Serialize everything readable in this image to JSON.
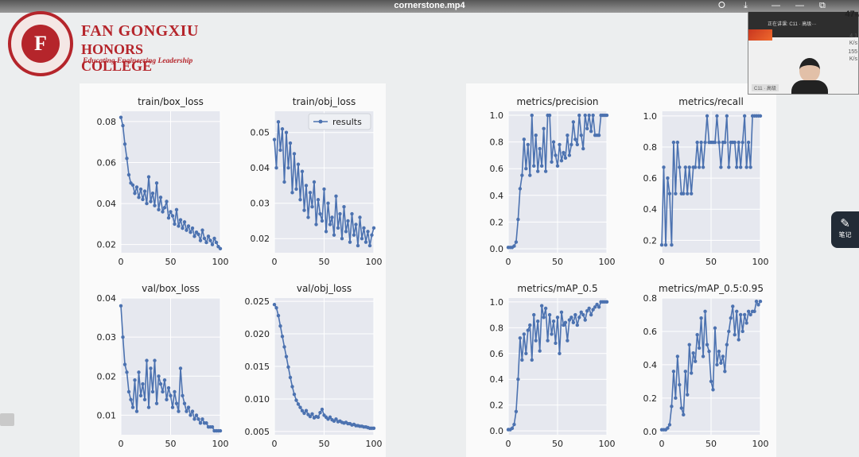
{
  "window": {
    "title": "cornerstone.mp4",
    "battery_value": "47",
    "battery_unit": "%"
  },
  "logo": {
    "seal_text": "F",
    "line1": "FAN GONGXIU",
    "line2": "HONORS COLLEGE",
    "tagline": "Educating Engineering Leadership"
  },
  "webcam": {
    "top_label": "正在讲课: C11 · 高级···",
    "name_tag": "C11 · 高级",
    "net_up": "4.1",
    "net_up_unit": "K/s",
    "net_down": "155",
    "net_down_unit": "K/s"
  },
  "notes_button": {
    "label": "笔记"
  },
  "icons": {
    "share": "share-icon",
    "download": "download-icon",
    "minimize": "minimize-icon",
    "restore": "restore-icon",
    "close": "close-icon",
    "notes": "notes-icon",
    "sidebar": "sidebar-toggle-icon"
  },
  "chart_data": [
    {
      "type": "line",
      "title": "train/box_loss",
      "xlim": [
        0,
        100
      ],
      "ylim": [
        0.016,
        0.085
      ],
      "xticks": [
        0,
        50,
        100
      ],
      "yticks": [
        0.02,
        0.04,
        0.06,
        0.08
      ],
      "ytick_labels": [
        "0.02",
        "0.04",
        "0.06",
        "0.08"
      ],
      "color": "#4c72b0",
      "series": [
        {
          "x": [
            0,
            2,
            4,
            6,
            8,
            10,
            12,
            14,
            16,
            18,
            20,
            22,
            24,
            26,
            28,
            30,
            32,
            34,
            36,
            38,
            40,
            42,
            44,
            46,
            48,
            50,
            52,
            54,
            56,
            58,
            60,
            62,
            64,
            66,
            68,
            70,
            72,
            74,
            76,
            78,
            80,
            82,
            84,
            86,
            88,
            90,
            92,
            94,
            96,
            98,
            100
          ],
          "y": [
            0.082,
            0.078,
            0.069,
            0.062,
            0.054,
            0.05,
            0.049,
            0.045,
            0.048,
            0.043,
            0.047,
            0.042,
            0.046,
            0.04,
            0.053,
            0.041,
            0.045,
            0.039,
            0.05,
            0.037,
            0.043,
            0.036,
            0.038,
            0.041,
            0.033,
            0.036,
            0.034,
            0.03,
            0.037,
            0.029,
            0.032,
            0.028,
            0.031,
            0.027,
            0.029,
            0.026,
            0.028,
            0.024,
            0.026,
            0.025,
            0.022,
            0.027,
            0.023,
            0.021,
            0.024,
            0.022,
            0.02,
            0.023,
            0.021,
            0.019,
            0.018
          ]
        }
      ]
    },
    {
      "type": "line",
      "title": "train/obj_loss",
      "legend": "results",
      "legend_position": "top-right",
      "xlim": [
        0,
        100
      ],
      "ylim": [
        0.016,
        0.056
      ],
      "xticks": [
        0,
        50,
        100
      ],
      "yticks": [
        0.02,
        0.03,
        0.04,
        0.05
      ],
      "ytick_labels": [
        "0.02",
        "0.03",
        "0.04",
        "0.05"
      ],
      "color": "#4c72b0",
      "series": [
        {
          "x": [
            0,
            2,
            4,
            6,
            8,
            10,
            12,
            14,
            16,
            18,
            20,
            22,
            24,
            26,
            28,
            30,
            32,
            34,
            36,
            38,
            40,
            42,
            44,
            46,
            48,
            50,
            52,
            54,
            56,
            58,
            60,
            62,
            64,
            66,
            68,
            70,
            72,
            74,
            76,
            78,
            80,
            82,
            84,
            86,
            88,
            90,
            92,
            94,
            96,
            98,
            100
          ],
          "y": [
            0.048,
            0.04,
            0.053,
            0.045,
            0.051,
            0.036,
            0.05,
            0.04,
            0.047,
            0.033,
            0.044,
            0.034,
            0.041,
            0.031,
            0.039,
            0.028,
            0.035,
            0.026,
            0.033,
            0.029,
            0.036,
            0.024,
            0.031,
            0.027,
            0.025,
            0.034,
            0.022,
            0.03,
            0.024,
            0.026,
            0.021,
            0.032,
            0.023,
            0.027,
            0.02,
            0.029,
            0.022,
            0.025,
            0.019,
            0.027,
            0.021,
            0.024,
            0.018,
            0.026,
            0.02,
            0.023,
            0.019,
            0.022,
            0.018,
            0.021,
            0.023
          ]
        }
      ]
    },
    {
      "type": "line",
      "title": "val/box_loss",
      "xlim": [
        0,
        100
      ],
      "ylim": [
        0.005,
        0.04
      ],
      "xticks": [
        0,
        50,
        100
      ],
      "yticks": [
        0.01,
        0.02,
        0.03,
        0.04
      ],
      "ytick_labels": [
        "0.01",
        "0.02",
        "0.03",
        "0.04"
      ],
      "color": "#4c72b0",
      "series": [
        {
          "x": [
            0,
            2,
            4,
            6,
            8,
            10,
            12,
            14,
            16,
            18,
            20,
            22,
            24,
            26,
            28,
            30,
            32,
            34,
            36,
            38,
            40,
            42,
            44,
            46,
            48,
            50,
            52,
            54,
            56,
            58,
            60,
            62,
            64,
            66,
            68,
            70,
            72,
            74,
            76,
            78,
            80,
            82,
            84,
            86,
            88,
            90,
            92,
            94,
            96,
            98,
            100
          ],
          "y": [
            0.038,
            0.03,
            0.023,
            0.021,
            0.016,
            0.014,
            0.012,
            0.019,
            0.011,
            0.021,
            0.015,
            0.018,
            0.014,
            0.024,
            0.012,
            0.022,
            0.016,
            0.024,
            0.013,
            0.02,
            0.018,
            0.016,
            0.019,
            0.014,
            0.017,
            0.015,
            0.012,
            0.016,
            0.013,
            0.011,
            0.022,
            0.015,
            0.013,
            0.011,
            0.012,
            0.01,
            0.011,
            0.009,
            0.01,
            0.009,
            0.008,
            0.009,
            0.008,
            0.008,
            0.007,
            0.007,
            0.007,
            0.006,
            0.006,
            0.006,
            0.006
          ]
        }
      ]
    },
    {
      "type": "line",
      "title": "val/obj_loss",
      "xlim": [
        0,
        100
      ],
      "ylim": [
        0.0045,
        0.0255
      ],
      "xticks": [
        0,
        50,
        100
      ],
      "yticks": [
        0.005,
        0.01,
        0.015,
        0.02,
        0.025
      ],
      "ytick_labels": [
        "0.005",
        "0.010",
        "0.015",
        "0.020",
        "0.025"
      ],
      "color": "#4c72b0",
      "series": [
        {
          "x": [
            0,
            2,
            4,
            6,
            8,
            10,
            12,
            14,
            16,
            18,
            20,
            22,
            24,
            26,
            28,
            30,
            32,
            34,
            36,
            38,
            40,
            42,
            44,
            46,
            48,
            50,
            52,
            54,
            56,
            58,
            60,
            62,
            64,
            66,
            68,
            70,
            72,
            74,
            76,
            78,
            80,
            82,
            84,
            86,
            88,
            90,
            92,
            94,
            96,
            98,
            100
          ],
          "y": [
            0.0245,
            0.024,
            0.0228,
            0.0212,
            0.0196,
            0.018,
            0.0165,
            0.0149,
            0.0133,
            0.0119,
            0.0107,
            0.0098,
            0.0092,
            0.0087,
            0.0082,
            0.0078,
            0.0082,
            0.0076,
            0.0073,
            0.0077,
            0.0071,
            0.0073,
            0.0072,
            0.0079,
            0.0084,
            0.0075,
            0.0072,
            0.0069,
            0.0072,
            0.0068,
            0.0066,
            0.0069,
            0.0065,
            0.0066,
            0.0064,
            0.0063,
            0.0064,
            0.0062,
            0.0062,
            0.006,
            0.0061,
            0.0059,
            0.0059,
            0.0058,
            0.0058,
            0.0057,
            0.0057,
            0.0056,
            0.0055,
            0.0055,
            0.0055
          ]
        }
      ]
    },
    {
      "type": "line",
      "title": "metrics/precision",
      "xlim": [
        0,
        100
      ],
      "ylim": [
        -0.03,
        1.03
      ],
      "xticks": [
        0,
        50,
        100
      ],
      "yticks": [
        0,
        0.2,
        0.4,
        0.6,
        0.8,
        1.0
      ],
      "ytick_labels": [
        "0.0",
        "0.2",
        "0.4",
        "0.6",
        "0.8",
        "1.0"
      ],
      "color": "#4c72b0",
      "series": [
        {
          "x": [
            0,
            2,
            4,
            6,
            8,
            10,
            12,
            14,
            16,
            18,
            20,
            22,
            24,
            26,
            28,
            30,
            32,
            34,
            36,
            38,
            40,
            42,
            44,
            46,
            48,
            50,
            52,
            54,
            56,
            58,
            60,
            62,
            64,
            66,
            68,
            70,
            72,
            74,
            76,
            78,
            80,
            82,
            84,
            86,
            88,
            90,
            92,
            94,
            96,
            98,
            100
          ],
          "y": [
            0.01,
            0.01,
            0.01,
            0.02,
            0.05,
            0.22,
            0.45,
            0.55,
            0.82,
            0.6,
            0.78,
            0.55,
            1.0,
            0.62,
            0.85,
            0.58,
            0.75,
            0.62,
            0.9,
            0.58,
            1.0,
            1.0,
            0.65,
            0.8,
            0.7,
            0.62,
            0.78,
            0.66,
            0.72,
            0.68,
            0.85,
            0.7,
            0.78,
            0.95,
            0.82,
            0.78,
            1.0,
            0.85,
            0.75,
            1.0,
            0.9,
            1.0,
            0.88,
            1.0,
            0.85,
            0.85,
            0.85,
            1.0,
            1.0,
            1.0,
            1.0
          ]
        }
      ]
    },
    {
      "type": "line",
      "title": "metrics/recall",
      "xlim": [
        0,
        100
      ],
      "ylim": [
        0.12,
        1.03
      ],
      "xticks": [
        0,
        50,
        100
      ],
      "yticks": [
        0.2,
        0.4,
        0.6,
        0.8,
        1.0
      ],
      "ytick_labels": [
        "0.2",
        "0.4",
        "0.6",
        "0.8",
        "1.0"
      ],
      "color": "#4c72b0",
      "series": [
        {
          "x": [
            0,
            2,
            4,
            6,
            8,
            10,
            12,
            14,
            16,
            18,
            20,
            22,
            24,
            26,
            28,
            30,
            32,
            34,
            36,
            38,
            40,
            42,
            44,
            46,
            48,
            50,
            52,
            54,
            56,
            58,
            60,
            62,
            64,
            66,
            68,
            70,
            72,
            74,
            76,
            78,
            80,
            82,
            84,
            86,
            88,
            90,
            92,
            94,
            96,
            98,
            100
          ],
          "y": [
            0.17,
            0.67,
            0.17,
            0.6,
            0.5,
            0.17,
            0.83,
            0.5,
            0.83,
            0.67,
            0.5,
            0.5,
            0.67,
            0.5,
            0.67,
            0.5,
            0.67,
            0.67,
            0.83,
            0.67,
            0.83,
            0.67,
            0.83,
            1.0,
            0.83,
            0.83,
            0.83,
            0.83,
            1.0,
            0.83,
            0.67,
            0.83,
            0.83,
            1.0,
            0.67,
            0.83,
            0.83,
            0.83,
            0.67,
            0.83,
            0.67,
            0.83,
            1.0,
            0.67,
            0.83,
            0.67,
            1.0,
            1.0,
            1.0,
            1.0,
            1.0
          ]
        }
      ]
    },
    {
      "type": "line",
      "title": "metrics/mAP_0.5",
      "xlim": [
        0,
        100
      ],
      "ylim": [
        -0.03,
        1.03
      ],
      "xticks": [
        0,
        50,
        100
      ],
      "yticks": [
        0,
        0.2,
        0.4,
        0.6,
        0.8,
        1.0
      ],
      "ytick_labels": [
        "0.0",
        "0.2",
        "0.4",
        "0.6",
        "0.8",
        "1.0"
      ],
      "color": "#4c72b0",
      "series": [
        {
          "x": [
            0,
            2,
            4,
            6,
            8,
            10,
            12,
            14,
            16,
            18,
            20,
            22,
            24,
            26,
            28,
            30,
            32,
            34,
            36,
            38,
            40,
            42,
            44,
            46,
            48,
            50,
            52,
            54,
            56,
            58,
            60,
            62,
            64,
            66,
            68,
            70,
            72,
            74,
            76,
            78,
            80,
            82,
            84,
            86,
            88,
            90,
            92,
            94,
            96,
            98,
            100
          ],
          "y": [
            0.01,
            0.01,
            0.02,
            0.05,
            0.15,
            0.4,
            0.72,
            0.55,
            0.75,
            0.6,
            0.78,
            0.82,
            0.55,
            0.9,
            0.7,
            0.85,
            0.62,
            0.97,
            0.88,
            0.95,
            0.7,
            0.9,
            0.75,
            0.85,
            0.68,
            0.88,
            0.6,
            0.92,
            0.82,
            0.84,
            0.7,
            0.86,
            0.88,
            0.84,
            0.9,
            0.82,
            0.88,
            0.92,
            0.9,
            0.86,
            0.93,
            0.95,
            0.9,
            0.94,
            0.96,
            0.98,
            0.96,
            1.0,
            1.0,
            1.0,
            1.0
          ]
        }
      ]
    },
    {
      "type": "line",
      "title": "metrics/mAP_0.5:0.95",
      "xlim": [
        0,
        100
      ],
      "ylim": [
        -0.02,
        0.8
      ],
      "xticks": [
        0,
        50,
        100
      ],
      "yticks": [
        0,
        0.2,
        0.4,
        0.6,
        0.8
      ],
      "ytick_labels": [
        "0.0",
        "0.2",
        "0.4",
        "0.6",
        "0.8"
      ],
      "color": "#4c72b0",
      "series": [
        {
          "x": [
            0,
            2,
            4,
            6,
            8,
            10,
            12,
            14,
            16,
            18,
            20,
            22,
            24,
            26,
            28,
            30,
            32,
            34,
            36,
            38,
            40,
            42,
            44,
            46,
            48,
            50,
            52,
            54,
            56,
            58,
            60,
            62,
            64,
            66,
            68,
            70,
            72,
            74,
            76,
            78,
            80,
            82,
            84,
            86,
            88,
            90,
            92,
            94,
            96,
            98,
            100
          ],
          "y": [
            0.01,
            0.01,
            0.01,
            0.02,
            0.04,
            0.15,
            0.36,
            0.2,
            0.45,
            0.28,
            0.14,
            0.1,
            0.36,
            0.22,
            0.52,
            0.35,
            0.47,
            0.42,
            0.58,
            0.5,
            0.68,
            0.45,
            0.72,
            0.52,
            0.48,
            0.3,
            0.25,
            0.62,
            0.4,
            0.48,
            0.41,
            0.45,
            0.36,
            0.52,
            0.6,
            0.68,
            0.75,
            0.58,
            0.72,
            0.55,
            0.7,
            0.6,
            0.7,
            0.65,
            0.72,
            0.7,
            0.72,
            0.72,
            0.78,
            0.76,
            0.78
          ]
        }
      ]
    }
  ]
}
